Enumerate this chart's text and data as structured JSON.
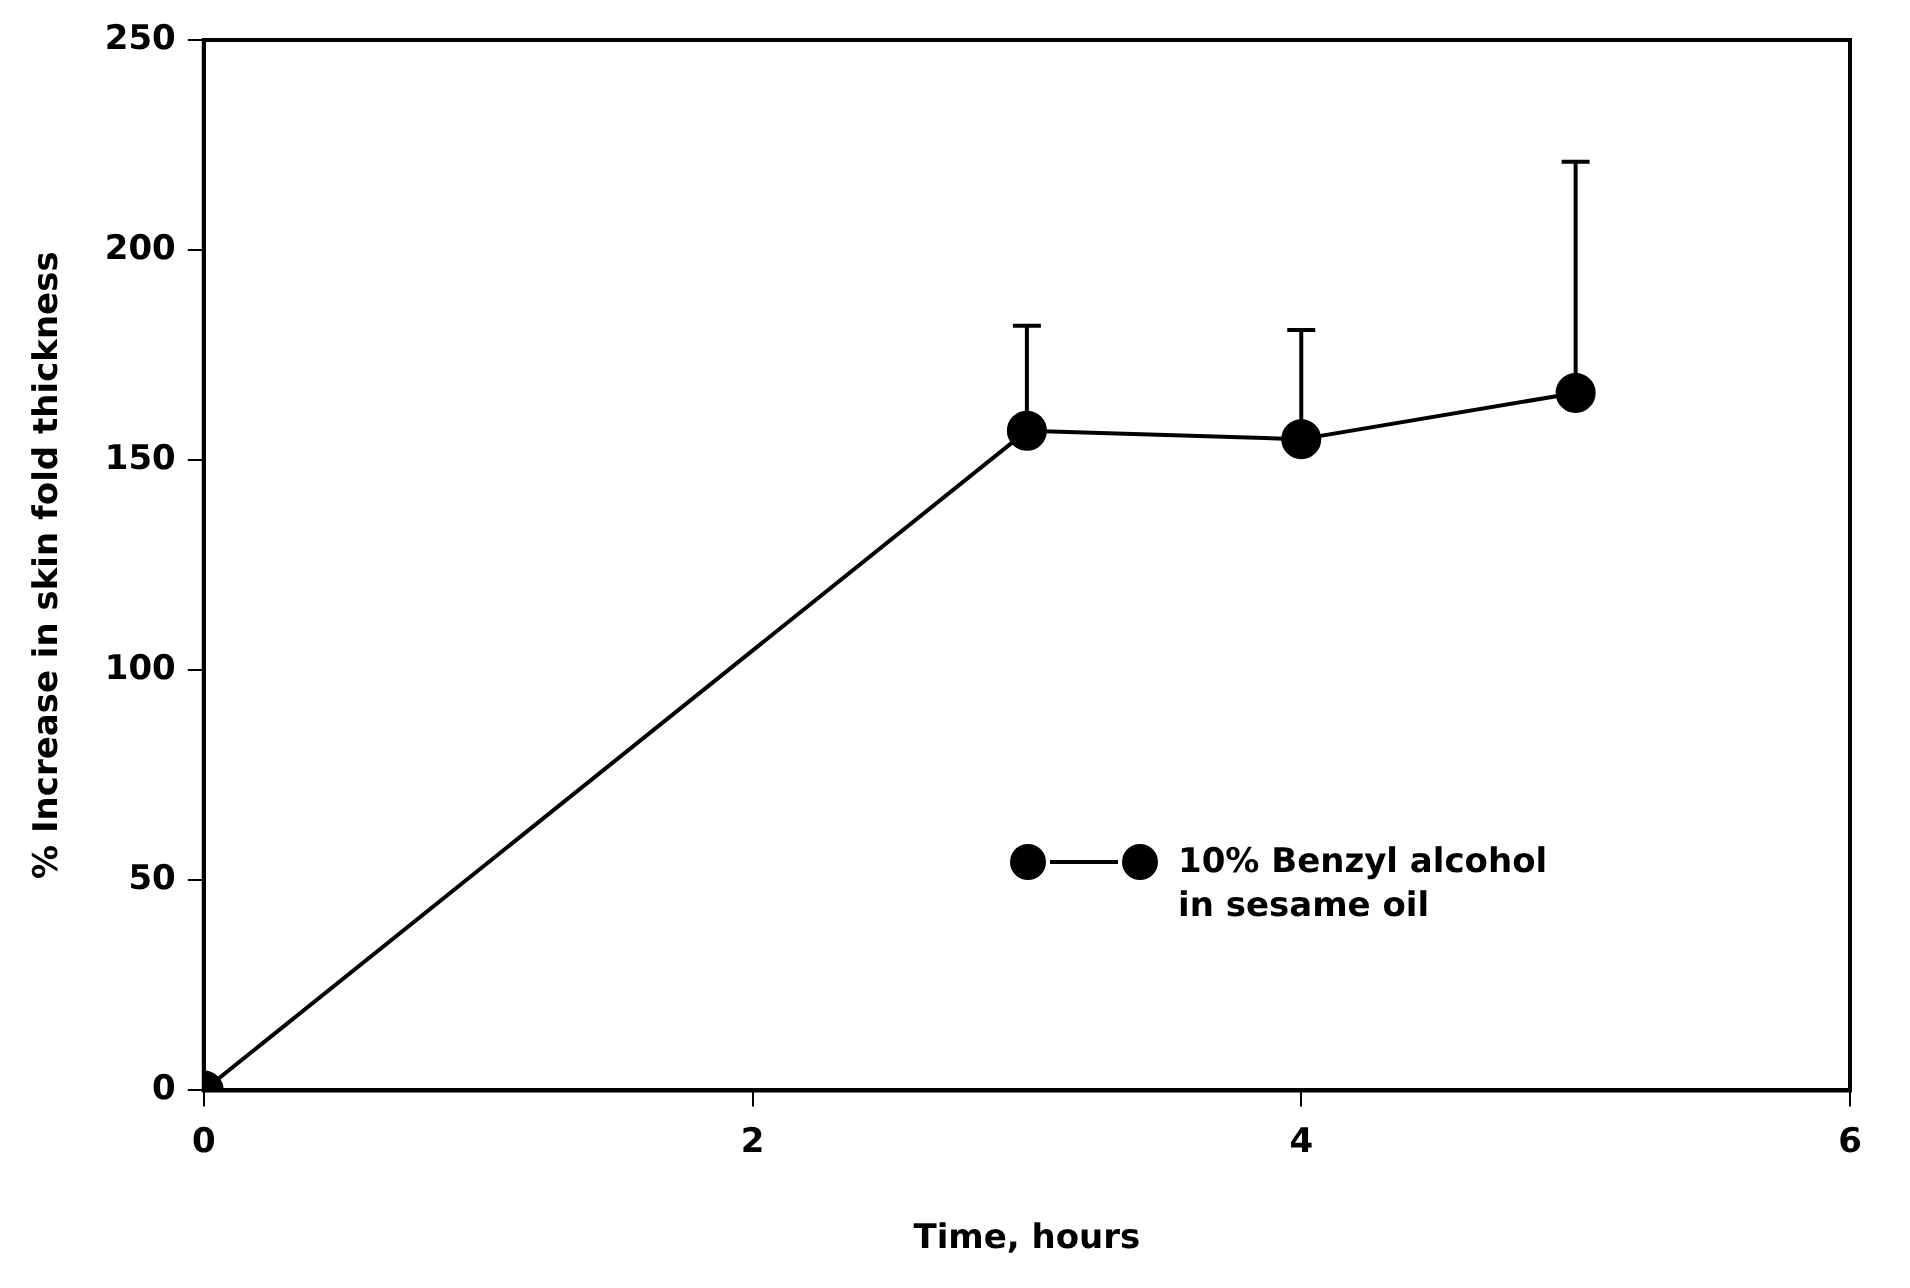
{
  "chart_data": {
    "type": "line",
    "xlabel": "Time, hours",
    "ylabel": "% Increase in skin fold thickness",
    "x": [
      0,
      3,
      4,
      5
    ],
    "series": [
      {
        "name": "10% Benzyl alcohol in sesame oil",
        "color": "#000000",
        "values": [
          0,
          157,
          155,
          166
        ],
        "errors": [
          null,
          [
            157,
            182
          ],
          [
            155,
            181
          ],
          [
            166,
            221
          ]
        ]
      }
    ],
    "xlim": [
      0,
      6
    ],
    "xticks": [
      0,
      2,
      4,
      6
    ],
    "ylim": [
      0,
      250
    ],
    "yticks": [
      0,
      50,
      100,
      150,
      200,
      250
    ],
    "grid": false,
    "legend": "bottom right",
    "marker": "circle",
    "line_style": "solid"
  }
}
